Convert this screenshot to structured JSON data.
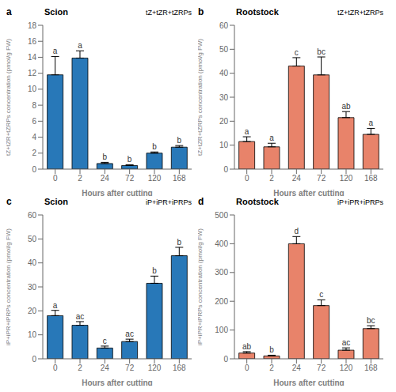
{
  "chart_data": [
    {
      "type": "bar",
      "label": "a",
      "title": "Scion",
      "subtitle": "tZ+tZR+tZRPs",
      "xlabel": "Hours after cutting",
      "ylabel": "tZ+tZR+tZRPs concentration (pmol/g FW)",
      "color": "#2878b8",
      "grid": false,
      "ylim": [
        0,
        18
      ],
      "yticks": [
        0,
        2,
        4,
        6,
        8,
        10,
        12,
        14,
        16,
        18
      ],
      "categories": [
        "0",
        "2",
        "24",
        "72",
        "120",
        "168"
      ],
      "values": [
        11.8,
        13.9,
        0.7,
        0.45,
        2.0,
        2.75
      ],
      "errors": [
        2.3,
        0.9,
        0.15,
        0.1,
        0.15,
        0.2
      ],
      "letters": [
        "a",
        "a",
        "b",
        "b",
        "b",
        "b"
      ]
    },
    {
      "type": "bar",
      "label": "b",
      "title": "Rootstock",
      "subtitle": "tZ+tZR+tZRPs",
      "xlabel": "Hours after cutting",
      "ylabel": "tZ+tZR+tZRPs concentration (pmol/g FW)",
      "color": "#e8836a",
      "grid": false,
      "ylim": [
        0,
        60
      ],
      "yticks": [
        0,
        10,
        20,
        30,
        40,
        50,
        60
      ],
      "categories": [
        "0",
        "2",
        "24",
        "72",
        "120",
        "168"
      ],
      "values": [
        11.5,
        9.3,
        43.0,
        39.3,
        21.5,
        14.5
      ],
      "errors": [
        2.0,
        1.5,
        3.5,
        7.5,
        2.5,
        2.5
      ],
      "letters": [
        "a",
        "a",
        "c",
        "bc",
        "ab",
        "a"
      ]
    },
    {
      "type": "bar",
      "label": "c",
      "title": "Scion",
      "subtitle": "iP+iPR+iPRPs",
      "xlabel": "Hours after cutting",
      "ylabel": "iP+iPR+iPRPs concentration (pmol/g FW)",
      "color": "#2878b8",
      "grid": false,
      "ylim": [
        0,
        60
      ],
      "yticks": [
        0,
        10,
        20,
        30,
        40,
        50,
        60
      ],
      "categories": [
        "0",
        "2",
        "24",
        "72",
        "120",
        "168"
      ],
      "values": [
        18.0,
        14.0,
        4.5,
        7.2,
        31.5,
        43.0
      ],
      "errors": [
        2.2,
        1.5,
        0.8,
        1.0,
        3.0,
        3.5
      ],
      "letters": [
        "a",
        "ac",
        "c",
        "ac",
        "b",
        "b"
      ]
    },
    {
      "type": "bar",
      "label": "d",
      "title": "Rootstock",
      "subtitle": "iP+iPR+iPRPs",
      "xlabel": "Hours after cutting",
      "ylabel": "iP+iPR+iPRPs concentration (pmol/g FW)",
      "color": "#e8836a",
      "grid": false,
      "ylim": [
        0,
        500
      ],
      "yticks": [
        0,
        100,
        200,
        300,
        400,
        500
      ],
      "categories": [
        "0",
        "2",
        "24",
        "72",
        "120",
        "168"
      ],
      "values": [
        20.0,
        10.0,
        400.0,
        185.0,
        30.0,
        105.0
      ],
      "errors": [
        5.0,
        2.5,
        25.0,
        20.0,
        8.0,
        10.0
      ],
      "letters": [
        "ab",
        "b",
        "d",
        "c",
        "ac",
        "bc"
      ]
    }
  ]
}
